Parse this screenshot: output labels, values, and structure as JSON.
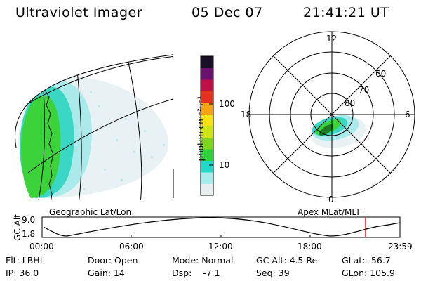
{
  "header": {
    "instrument": "Ultraviolet Imager",
    "date": "05 Dec 07",
    "time": "21:41:21 UT"
  },
  "colorbar": {
    "unit_label": "photon cm⁻²s⁻¹",
    "ticks": [
      "100",
      "10"
    ],
    "colors": [
      "#e6eef0",
      "#a8ecec",
      "#22d8c8",
      "#2ed23a",
      "#7bd61c",
      "#cfe414",
      "#f6e214",
      "#f7a114",
      "#e4301c",
      "#c01048",
      "#6a1270",
      "#1c1028"
    ]
  },
  "geo_panel": {
    "label": "Geographic Lat/Lon"
  },
  "polar_panel": {
    "label": "Apex MLat/MLT",
    "mlt_labels": {
      "top": "12",
      "left": "18",
      "right": "6",
      "bottom": "0"
    },
    "lat_labels": [
      "60",
      "70",
      "80"
    ]
  },
  "timeline": {
    "axis_label": "GC Alt",
    "y_ticks": [
      "9.0",
      "1.8"
    ],
    "x_ticks": [
      "00:00",
      "06:00",
      "12:00",
      "18:00",
      "23:59"
    ],
    "marker_color": "#e41a1a"
  },
  "info": {
    "row1": [
      "Flt: LBHL",
      "Door: Open",
      "Mode: Normal",
      "GC Alt: 4.5 Re",
      "GLat: -56.7"
    ],
    "row2": [
      "IP: 36.0",
      "Gain: 14",
      "Dsp:    -7.1",
      "Seq: 39",
      "GLon: 105.9"
    ]
  }
}
